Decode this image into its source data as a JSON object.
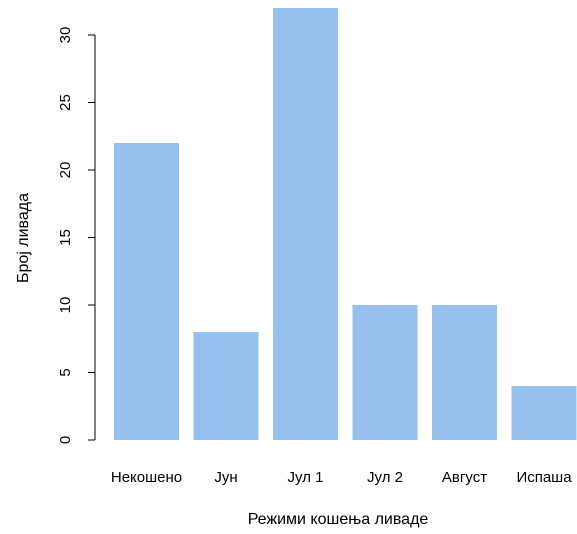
{
  "chart_data": {
    "type": "bar",
    "title": "",
    "xlabel": "Режими кошења ливаде",
    "ylabel": "Број ливада",
    "categories": [
      "Некошено",
      "Јун",
      "Јул 1",
      "Јул 2",
      "Август",
      "Испаша"
    ],
    "values": [
      22,
      8,
      32,
      10,
      10,
      4
    ],
    "yticks": [
      0,
      5,
      10,
      15,
      20,
      25,
      30
    ],
    "ylim": [
      0,
      32
    ],
    "grid": false,
    "legend": "none",
    "colors": {
      "bar": "#96c1ee",
      "axis": "#000000",
      "text": "#000000"
    }
  }
}
